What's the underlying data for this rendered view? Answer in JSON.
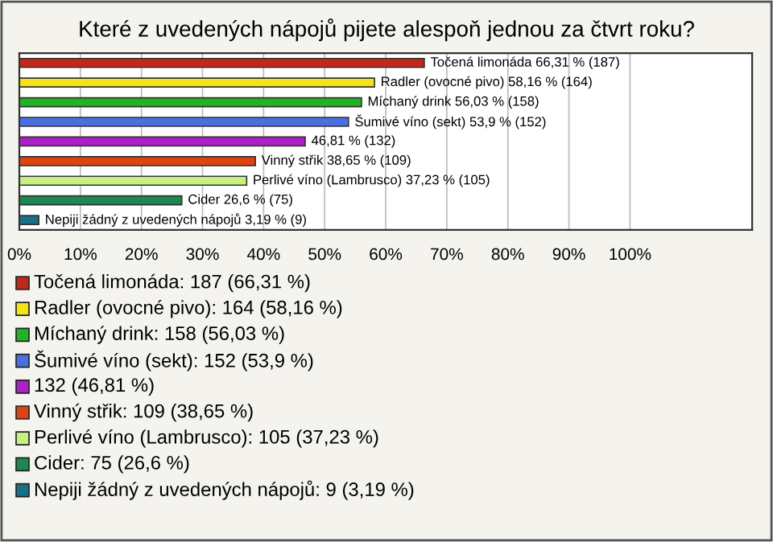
{
  "chart_data": {
    "type": "bar",
    "orientation": "horizontal",
    "title": "Které z uvedených nápojů pijete alespoň jednou za čtvrt roku?",
    "categories": [
      "Točená limonáda",
      "Radler (ovocné pivo)",
      "Míchaný drink",
      "Šumivé víno (sekt)",
      null,
      "Vinný střik",
      "Perlivé víno (Lambrusco)",
      "Cider",
      "Nepiji žádný z uvedených nápojů"
    ],
    "values": [
      66.31,
      58.16,
      56.03,
      53.9,
      46.81,
      38.65,
      37.23,
      26.6,
      3.19
    ],
    "colors": [
      "#c0281c",
      "#f5e21a",
      "#22b222",
      "#4a6fe0",
      "#b020c8",
      "#dd4411",
      "#c8f080",
      "#1c8a50",
      "#1a7088"
    ],
    "value_labels": [
      "66,31 % (187)",
      "58,16 % (164)",
      "56,03 % (158)",
      "53,9 % (152)",
      "46,81 % (132)",
      "38,65 % (109)",
      "37,23 % (105)",
      "26,6 % (75)",
      "3,19 % (9)"
    ],
    "annotations": [
      "Točená limonáda: 187 (66,31 %)",
      "Radler (ovocné pivo): 164 (58,16 %)",
      "Míchaný drink: 158 (56,03 %)",
      "Šumivé víno (sekt): 152 (53,9 %)",
      "132 (46,81 %)",
      "Vinný střik: 109 (38,65 %)",
      "Perlivé víno (Lambrusco): 105 (37,23 %)",
      "Cider: 75 (26,6 %)",
      "Nepiji žádný z uvedených nápojů: 9 (3,19 %)"
    ],
    "xlim": [
      0,
      120
    ],
    "xticks": [
      {
        "value": 0,
        "label": "0%"
      },
      {
        "value": 10,
        "label": "10%"
      },
      {
        "value": 20,
        "label": "20%"
      },
      {
        "value": 30,
        "label": "30%"
      },
      {
        "value": 40,
        "label": "40%"
      },
      {
        "value": 50,
        "label": "50%"
      },
      {
        "value": 60,
        "label": "60%"
      },
      {
        "value": 70,
        "label": "70%"
      },
      {
        "value": 80,
        "label": "80%"
      },
      {
        "value": 90,
        "label": "90%"
      },
      {
        "value": 100,
        "label": "100%"
      }
    ],
    "grid": "x"
  }
}
